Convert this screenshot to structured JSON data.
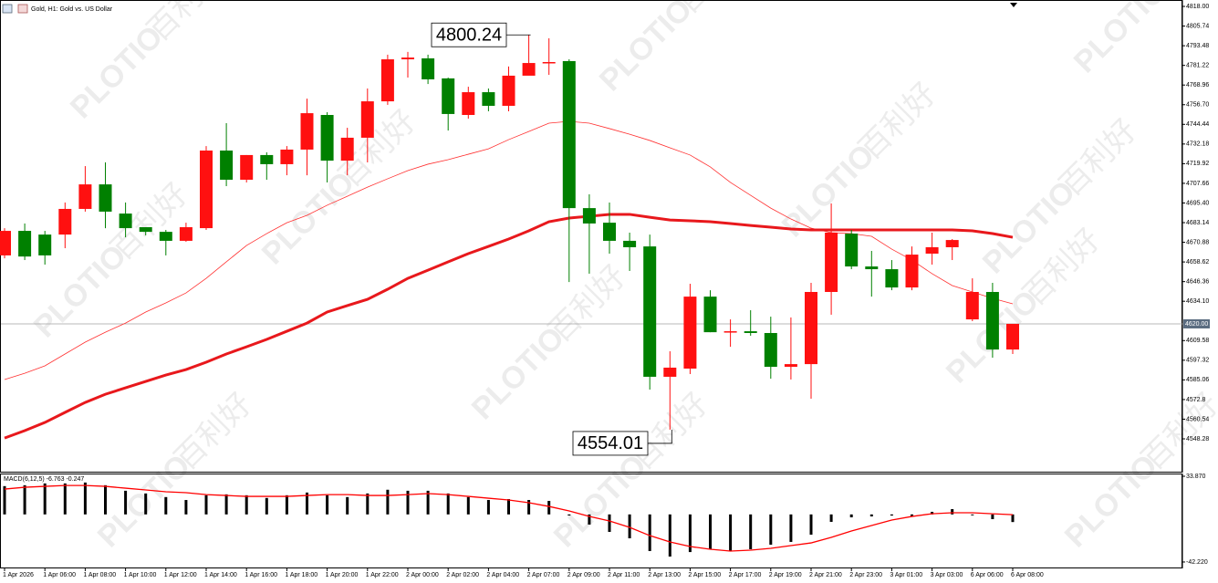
{
  "chart_data": [
    {
      "type": "candlestick",
      "title": "Gold, H1: Gold vs. US Dollar",
      "categories": [
        "1 Apr 2026",
        null,
        "1 Apr 06:00",
        null,
        "1 Apr 08:00",
        null,
        "1 Apr 10:00",
        null,
        "1 Apr 12:00",
        null,
        "1 Apr 14:00",
        null,
        "1 Apr 16:00",
        null,
        "1 Apr 18:00",
        null,
        "1 Apr 20:00",
        null,
        "1 Apr 22:00",
        null,
        "2 Apr 00:00",
        null,
        "2 Apr 02:00",
        null,
        "2 Apr 04:00",
        null,
        "2 Apr 07:00",
        null,
        "2 Apr 09:00",
        null,
        "2 Apr 11:00",
        null,
        "2 Apr 13:00",
        null,
        "2 Apr 15:00",
        null,
        "2 Apr 17:00",
        null,
        "2 Apr 19:00",
        null,
        "2 Apr 21:00",
        null,
        "2 Apr 23:00",
        null,
        "3 Apr 01:00",
        null,
        "3 Apr 03:00",
        null,
        "6 Apr 06:00",
        null,
        "6 Apr 08:00"
      ],
      "open": [
        4662.7,
        4678.0,
        4675.7,
        4675.7,
        4691.7,
        4707.0,
        4688.8,
        4680.3,
        4677.4,
        4671.8,
        4679.7,
        4728.1,
        4709.9,
        4725.3,
        4719.6,
        4728.7,
        4750.3,
        4721.8,
        4736.1,
        4758.8,
        4785.0,
        4785.6,
        4773.1,
        4750.3,
        4764.5,
        4756.0,
        4774.8,
        4783.0,
        4783.9,
        4692.2,
        4683.1,
        4671.8,
        4668.3,
        4587.0,
        4592.1,
        4637.0,
        4614.8,
        4615.4,
        4614.3,
        4593.2,
        4594.9,
        4639.9,
        4676.3,
        4655.8,
        4654.1,
        4642.7,
        4663.8,
        4667.8,
        4622.8,
        4639.9,
        4604.0
      ],
      "high": [
        4679.7,
        4682.6,
        4678.0,
        4695.7,
        4718.4,
        4720.7,
        4695.7,
        4680.3,
        4678.6,
        4683.1,
        4730.9,
        4745.2,
        4725.3,
        4727.0,
        4730.9,
        4760.5,
        4752.0,
        4742.3,
        4766.8,
        4787.9,
        4789.6,
        4787.9,
        4773.6,
        4767.9,
        4766.8,
        4780.5,
        4800.24,
        4798.1,
        4785.0,
        4700.8,
        4695.7,
        4676.9,
        4675.7,
        4602.9,
        4645.0,
        4641.0,
        4622.8,
        4628.5,
        4624.5,
        4624.0,
        4645.6,
        4695.1,
        4678.6,
        4665.5,
        4659.8,
        4668.3,
        4676.9,
        4672.9,
        4648.4,
        4645.6,
        4620.0
      ],
      "low": [
        4660.9,
        4659.8,
        4656.96,
        4667.2,
        4690.0,
        4679.7,
        4674.0,
        4675.2,
        4662.7,
        4671.2,
        4678.6,
        4705.9,
        4708.2,
        4709.9,
        4712.7,
        4712.7,
        4708.2,
        4712.7,
        4720.7,
        4756.6,
        4773.6,
        4769.6,
        4740.6,
        4748.0,
        4752.6,
        4752.6,
        4775.3,
        4775.3,
        4646.1,
        4651.3,
        4663.8,
        4653.0,
        4579.0,
        4554.01,
        4588.7,
        4614.8,
        4605.7,
        4612.6,
        4585.8,
        4585.3,
        4573.3,
        4625.7,
        4654.1,
        4637.0,
        4641.0,
        4641.0,
        4656.96,
        4659.8,
        4621.7,
        4598.9,
        4601.2
      ],
      "close": [
        4678.0,
        4662.0,
        4662.7,
        4691.7,
        4707.0,
        4690.0,
        4679.7,
        4677.4,
        4671.8,
        4680.3,
        4728.1,
        4709.9,
        4725.3,
        4719.6,
        4728.7,
        4751.4,
        4721.8,
        4736.1,
        4758.8,
        4785.0,
        4786.1,
        4772.5,
        4750.9,
        4764.5,
        4756.0,
        4774.8,
        4782.7,
        4783.3,
        4692.2,
        4682.6,
        4671.8,
        4667.8,
        4587.0,
        4592.7,
        4637.0,
        4614.8,
        4615.4,
        4614.3,
        4593.2,
        4594.9,
        4639.9,
        4676.9,
        4655.8,
        4654.1,
        4642.7,
        4663.2,
        4667.8,
        4672.3,
        4639.9,
        4604.0,
        4620.0
      ],
      "up_color": "#ff1010",
      "down_color": "#008000",
      "overlays": [
        {
          "color": "#ff3030",
          "width": 0.8,
          "values": [
            4585.3,
            4589.2,
            4593.8,
            4601.2,
            4608.6,
            4614.8,
            4620.5,
            4627.4,
            4633.1,
            4639.3,
            4648.4,
            4658.7,
            4668.9,
            4676.3,
            4683.1,
            4687.7,
            4694.0,
            4699.6,
            4705.3,
            4710.5,
            4715.6,
            4719.6,
            4722.4,
            4725.8,
            4729.2,
            4734.9,
            4740.0,
            4745.2,
            4746.3,
            4745.2,
            4741.8,
            4738.3,
            4734.4,
            4729.8,
            4725.3,
            4717.9,
            4708.2,
            4700.2,
            4692.2,
            4685.4,
            4679.7,
            4676.9,
            4676.3,
            4674.6,
            4666.6,
            4659.8,
            4651.3,
            4643.9,
            4639.9,
            4635.9,
            4632.5
          ]
        },
        {
          "color": "#e8181c",
          "width": 3,
          "values": [
            4548.8,
            4553.4,
            4558.5,
            4564.8,
            4571.0,
            4576.1,
            4580.1,
            4584.1,
            4588.1,
            4591.5,
            4596.1,
            4601.2,
            4605.7,
            4610.3,
            4615.4,
            4620.5,
            4627.4,
            4631.4,
            4635.3,
            4641.6,
            4648.4,
            4653.5,
            4658.7,
            4663.8,
            4668.3,
            4672.9,
            4678.0,
            4683.7,
            4686.0,
            4687.1,
            4688.3,
            4688.3,
            4686.5,
            4684.8,
            4684.3,
            4683.7,
            4682.6,
            4681.4,
            4680.3,
            4679.2,
            4678.6,
            4678.6,
            4678.6,
            4678.6,
            4678.6,
            4678.6,
            4678.6,
            4678.6,
            4678.0,
            4676.3,
            4674.0
          ]
        }
      ],
      "annotations": [
        {
          "value": 4800.24,
          "label": "4800.24"
        },
        {
          "value": 4554.01,
          "label": "4554.01"
        }
      ],
      "price_line": {
        "value": 4620.0,
        "label": "4620.00"
      },
      "ylim": [
        4527.8,
        4822.0
      ],
      "yticks": [
        {
          "value": 4818,
          "label": "4818.00"
        },
        4805.74,
        4793.48,
        4781.22,
        4768.96,
        {
          "value": 4756.7,
          "label": "4756.70"
        },
        4744.44,
        4732.18,
        4719.92,
        4707.66,
        {
          "value": 4695.4,
          "label": "4695.40"
        },
        4683.14,
        4670.88,
        4658.62,
        4646.36,
        {
          "value": 4634.1,
          "label": "4634.10"
        },
        4609.58,
        4597.32,
        4585.06,
        4572.8,
        4560.54,
        4548.28
      ],
      "watermark": {
        "brand": "PLOTIO",
        "text": "百利好"
      }
    },
    {
      "type": "macd",
      "title": "MACD(6,12,5) -6.763 -0.247",
      "values": [
        25.1,
        25.9,
        27.5,
        27.5,
        28.3,
        25.9,
        21.0,
        18.6,
        15.4,
        12.8,
        17.0,
        17.8,
        17.0,
        14.6,
        17.0,
        19.4,
        17.0,
        15.4,
        18.6,
        21.9,
        21.0,
        21.0,
        18.6,
        15.4,
        12.8,
        13.6,
        12.8,
        12.0,
        -1.0,
        -9.0,
        -15.5,
        -21.2,
        -32.5,
        -37.4,
        -33.4,
        -30.9,
        -32.5,
        -30.9,
        -26.9,
        -24.4,
        -18.0,
        -6.6,
        -2.6,
        -1.8,
        -1.0,
        -1.8,
        2.3,
        4.7,
        -0.2,
        -4.2,
        -6.763
      ],
      "color": "#000000",
      "signal": [
        22.5,
        24.1,
        24.9,
        25.7,
        25.7,
        24.9,
        23.3,
        21.7,
        20.1,
        19.3,
        17.6,
        16.8,
        16.0,
        16.0,
        16.0,
        16.8,
        17.6,
        17.6,
        16.8,
        16.8,
        17.6,
        18.5,
        17.6,
        16.0,
        14.4,
        12.8,
        10.4,
        7.1,
        3.1,
        -1.8,
        -5.8,
        -11.5,
        -18.8,
        -24.4,
        -28.5,
        -30.9,
        -32.5,
        -31.7,
        -30.1,
        -27.7,
        -25.3,
        -20.4,
        -14.7,
        -9.9,
        -5.0,
        -1.8,
        0.6,
        1.5,
        1.5,
        0.6,
        -0.247
      ],
      "signal_color": "#ff0000",
      "ylim": [
        -47.1,
        36.3
      ],
      "yticks": [
        {
          "value": 33.87,
          "label": "33.870"
        },
        {
          "value": -42.22,
          "label": "-42.220"
        }
      ]
    }
  ]
}
